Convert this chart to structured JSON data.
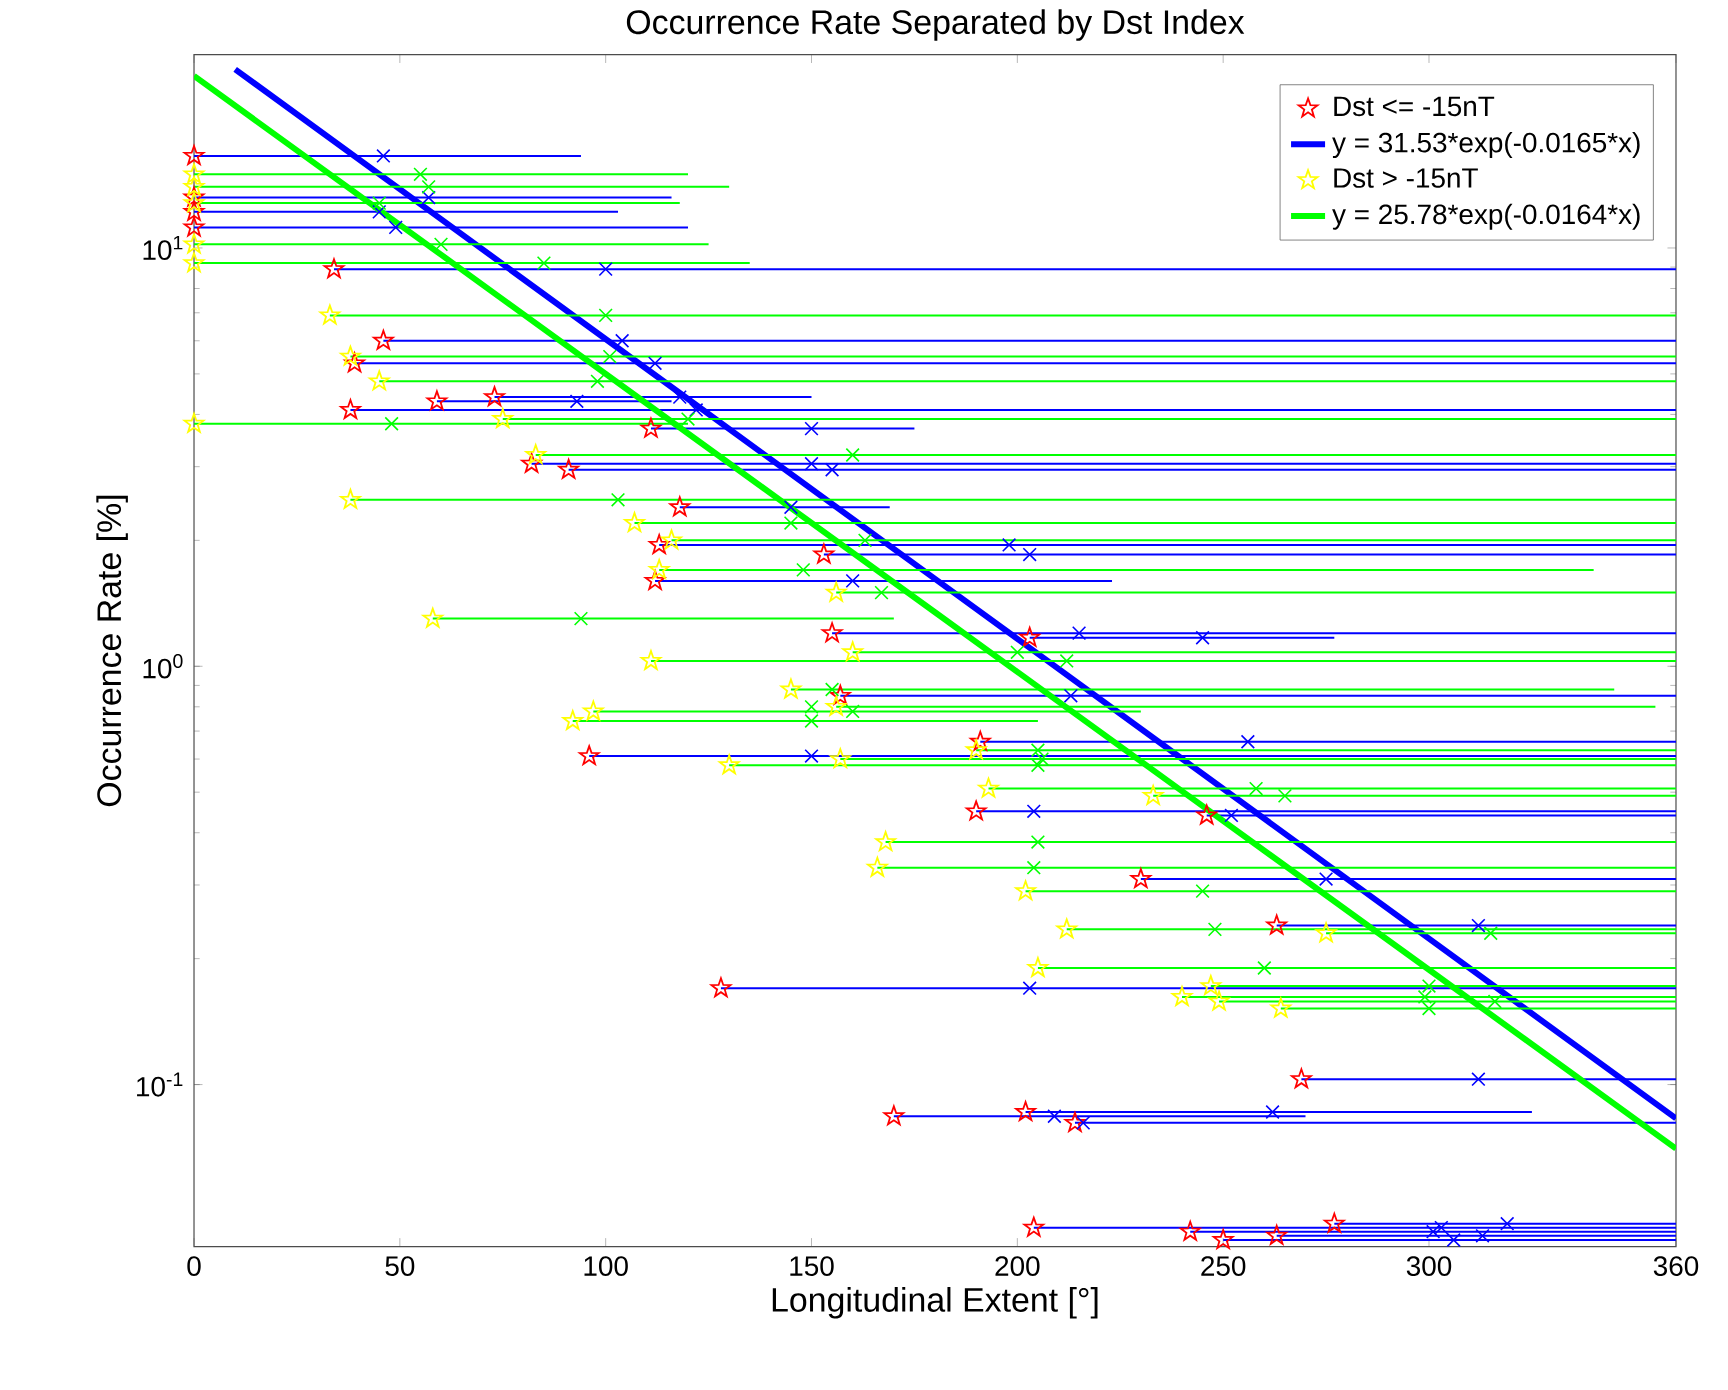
{
  "chart_data": {
    "type": "scatter",
    "title": "Occurrence Rate Separated by Dst Index",
    "xlabel": "Longitudinal Extent [°]",
    "ylabel": "Occurrence Rate [%]",
    "log": "y",
    "legend": "top right",
    "grid": false,
    "xlim": [
      0,
      360
    ],
    "xticks": [
      0,
      50,
      100,
      150,
      200,
      250,
      300,
      360
    ],
    "ylim": [
      0.041,
      29
    ],
    "yticks": [
      {
        "value": 0.1,
        "label": "10$^{-1}$"
      },
      {
        "value": 1,
        "label": "10$^{0}$"
      },
      {
        "value": 10,
        "label": "10$^{1}$"
      }
    ],
    "series": [
      {
        "name": "Dst <= -15nT",
        "marker": "star",
        "color": "#ff0000",
        "x": [
          0,
          0,
          0,
          0,
          34,
          46,
          39,
          38,
          59,
          73,
          82,
          91,
          111,
          113,
          118,
          153,
          112,
          155,
          157,
          96,
          190,
          191,
          203,
          230,
          246,
          263,
          128,
          170,
          202,
          214,
          269,
          204,
          242,
          250,
          263,
          277
        ],
        "values": [
          16.6,
          13.2,
          12.2,
          11.2,
          8.9,
          6.0,
          5.3,
          4.1,
          4.3,
          4.4,
          3.05,
          2.95,
          3.7,
          1.95,
          2.4,
          1.85,
          1.6,
          1.2,
          0.85,
          0.61,
          0.45,
          0.66,
          1.17,
          0.31,
          0.44,
          0.24,
          0.17,
          0.084,
          0.086,
          0.081,
          0.103,
          0.0455,
          0.0445,
          0.0425,
          0.0435,
          0.0465
        ]
      },
      {
        "marker": "cross",
        "color": "#0000ff",
        "x": [
          46,
          57,
          45,
          49,
          100,
          104,
          112,
          122,
          93,
          118,
          150,
          155,
          150,
          198,
          145,
          203,
          160,
          215,
          213,
          150,
          204,
          256,
          245,
          275,
          252,
          312,
          203,
          209,
          262,
          216,
          312,
          303,
          301,
          306,
          313,
          319
        ],
        "values": [
          16.6,
          13.2,
          12.2,
          11.2,
          8.9,
          6.0,
          5.3,
          4.1,
          4.3,
          4.4,
          3.05,
          2.95,
          3.7,
          1.95,
          2.4,
          1.85,
          1.6,
          1.2,
          0.85,
          0.61,
          0.45,
          0.66,
          1.17,
          0.31,
          0.44,
          0.24,
          0.17,
          0.084,
          0.086,
          0.081,
          0.103,
          0.0455,
          0.0445,
          0.0425,
          0.0435,
          0.0465
        ],
        "xerrors": [
          [
            0,
            94
          ],
          [
            0,
            116
          ],
          [
            0,
            103
          ],
          [
            0,
            120
          ],
          [
            34,
            360
          ],
          [
            46,
            360
          ],
          [
            39,
            360
          ],
          [
            38,
            360
          ],
          [
            59,
            116
          ],
          [
            73,
            150
          ],
          [
            82,
            360
          ],
          [
            91,
            360
          ],
          [
            111,
            175
          ],
          [
            113,
            360
          ],
          [
            118,
            169
          ],
          [
            153,
            360
          ],
          [
            112,
            223
          ],
          [
            155,
            360
          ],
          [
            157,
            360
          ],
          [
            96,
            360
          ],
          [
            190,
            360
          ],
          [
            191,
            360
          ],
          [
            203,
            277
          ],
          [
            230,
            360
          ],
          [
            246,
            360
          ],
          [
            263,
            360
          ],
          [
            128,
            360
          ],
          [
            170,
            270
          ],
          [
            202,
            325
          ],
          [
            214,
            360
          ],
          [
            269,
            360
          ],
          [
            204,
            360
          ],
          [
            242,
            360
          ],
          [
            250,
            360
          ],
          [
            263,
            360
          ],
          [
            277,
            360
          ]
        ]
      },
      {
        "name": "y = 31.53*exp(-0.0165*x)",
        "type": "line",
        "color": "#0000ff",
        "x": [
          10,
          60,
          120,
          180,
          240,
          300,
          360
        ],
        "values": [
          26.73,
          11.72,
          4.354,
          1.618,
          0.601,
          0.2233,
          0.083
        ]
      },
      {
        "name": "Dst >  -15nT",
        "marker": "star",
        "color": "#ffff00",
        "x": [
          0,
          0,
          0,
          0,
          0,
          0,
          33,
          45,
          38,
          75,
          83,
          38,
          107,
          116,
          113,
          58,
          156,
          160,
          111,
          145,
          156,
          92,
          97,
          130,
          157,
          190,
          193,
          233,
          168,
          166,
          202,
          205,
          212,
          247,
          249,
          264,
          275,
          240
        ],
        "values": [
          15.0,
          14.0,
          12.8,
          10.2,
          9.2,
          3.8,
          6.9,
          4.8,
          5.5,
          3.9,
          3.2,
          2.5,
          2.2,
          2.0,
          1.7,
          1.3,
          1.5,
          1.08,
          1.03,
          0.88,
          0.8,
          0.74,
          0.78,
          0.58,
          0.6,
          0.63,
          0.51,
          0.49,
          0.38,
          0.33,
          0.29,
          0.19,
          0.235,
          0.172,
          0.158,
          0.152,
          0.23,
          0.162
        ]
      },
      {
        "marker": "cross",
        "color": "#00ff00",
        "x": [
          55,
          57,
          45,
          60,
          85,
          48,
          100,
          98,
          101,
          120,
          160,
          103,
          145,
          163,
          148,
          94,
          167,
          200,
          212,
          155,
          150,
          150,
          160,
          205,
          206,
          205,
          258,
          265,
          205,
          204,
          245,
          260,
          248,
          300,
          316,
          300,
          315,
          299
        ],
        "values": [
          15.0,
          14.0,
          12.8,
          10.2,
          9.2,
          3.8,
          6.9,
          4.8,
          5.5,
          3.9,
          3.2,
          2.5,
          2.2,
          2.0,
          1.7,
          1.3,
          1.5,
          1.08,
          1.03,
          0.88,
          0.8,
          0.74,
          0.78,
          0.58,
          0.6,
          0.63,
          0.51,
          0.49,
          0.38,
          0.33,
          0.29,
          0.19,
          0.235,
          0.172,
          0.158,
          0.152,
          0.23,
          0.162
        ],
        "xerrors": [
          [
            0,
            120
          ],
          [
            0,
            130
          ],
          [
            0,
            118
          ],
          [
            0,
            125
          ],
          [
            0,
            135
          ],
          [
            0,
            120
          ],
          [
            33,
            360
          ],
          [
            45,
            360
          ],
          [
            38,
            360
          ],
          [
            75,
            360
          ],
          [
            83,
            360
          ],
          [
            38,
            360
          ],
          [
            107,
            360
          ],
          [
            116,
            360
          ],
          [
            113,
            340
          ],
          [
            58,
            170
          ],
          [
            156,
            360
          ],
          [
            160,
            360
          ],
          [
            111,
            360
          ],
          [
            145,
            345
          ],
          [
            156,
            355
          ],
          [
            92,
            205
          ],
          [
            97,
            230
          ],
          [
            130,
            360
          ],
          [
            157,
            360
          ],
          [
            190,
            360
          ],
          [
            193,
            360
          ],
          [
            233,
            360
          ],
          [
            168,
            360
          ],
          [
            166,
            360
          ],
          [
            202,
            360
          ],
          [
            205,
            360
          ],
          [
            212,
            360
          ],
          [
            247,
            360
          ],
          [
            249,
            360
          ],
          [
            264,
            360
          ],
          [
            275,
            360
          ],
          [
            240,
            360
          ]
        ]
      },
      {
        "name": "y = 25.78*exp(-0.0164*x)",
        "type": "line",
        "color": "#00ff00",
        "x": [
          0,
          60,
          120,
          180,
          240,
          300,
          360
        ],
        "values": [
          25.78,
          9.64,
          3.602,
          1.346,
          0.503,
          0.1882,
          0.0703
        ]
      }
    ]
  }
}
